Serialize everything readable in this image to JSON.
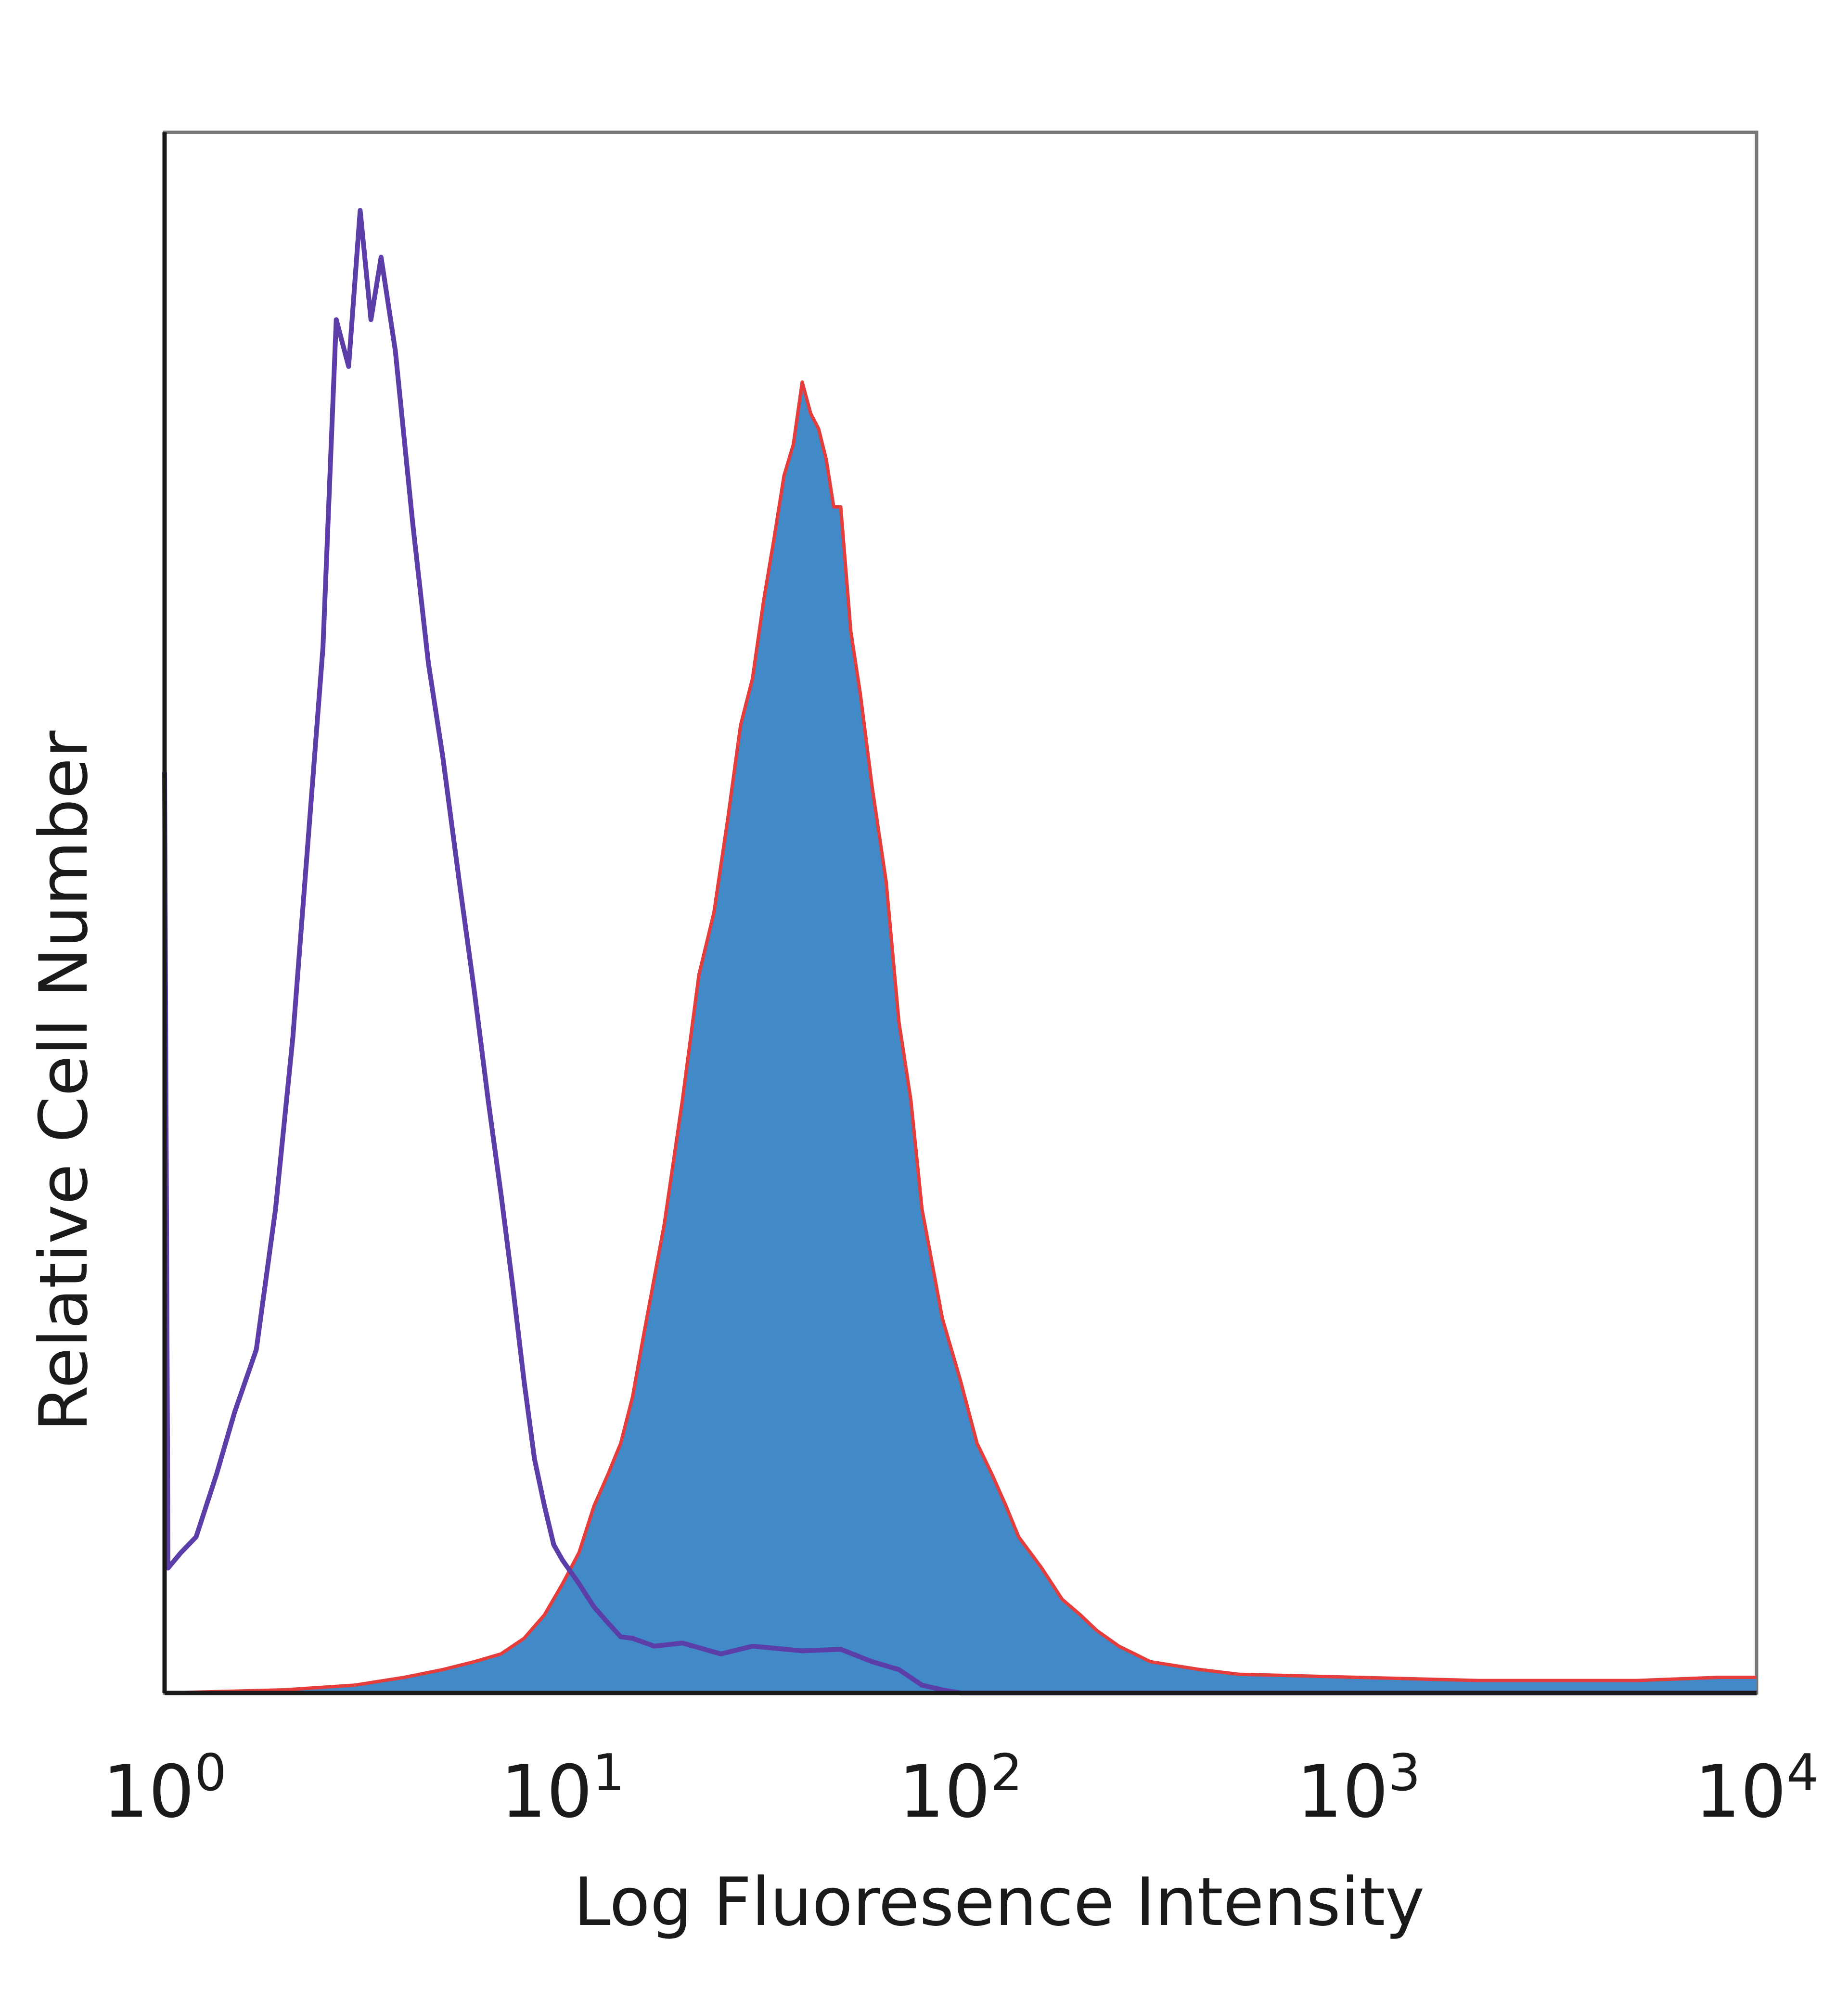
{
  "chart_data": {
    "type": "histogram",
    "title": "",
    "xlabel": "Log Fluoresence Intensity",
    "ylabel": "Relative Cell Number",
    "x_scale": "log",
    "xlim": [
      1,
      10000
    ],
    "ylim": [
      0,
      100
    ],
    "grid": false,
    "legend": "none",
    "x_tick_labels": [
      {
        "value": 1,
        "base": "10",
        "exp": "0"
      },
      {
        "value": 10,
        "base": "10",
        "exp": "1"
      },
      {
        "value": 100,
        "base": "10",
        "exp": "2"
      },
      {
        "value": 1000,
        "base": "10",
        "exp": "3"
      },
      {
        "value": 10000,
        "base": "10",
        "exp": "4"
      }
    ],
    "series": [
      {
        "style": "open-line",
        "color": "#5b3ea8",
        "x": [
          1,
          1.02,
          1.1,
          1.2,
          1.35,
          1.5,
          1.7,
          1.9,
          2.1,
          2.3,
          2.5,
          2.7,
          2.9,
          3.1,
          3.3,
          3.5,
          3.8,
          4.2,
          4.6,
          5.0,
          5.5,
          6.0,
          6.5,
          7.0,
          7.5,
          8.0,
          8.5,
          9.0,
          9.5,
          10,
          11,
          12,
          13,
          14,
          15,
          17,
          20,
          25,
          30,
          40,
          50,
          60,
          70,
          80,
          90,
          100,
          150,
          10000
        ],
        "y": [
          59,
          8,
          9,
          10,
          14,
          18,
          22,
          31,
          42,
          55,
          67,
          88,
          85,
          95,
          88,
          92,
          86,
          75,
          66,
          60,
          52,
          45,
          38,
          32,
          26,
          20,
          15,
          12,
          9.5,
          8.5,
          7,
          5.5,
          4.5,
          3.6,
          3.5,
          3,
          3.2,
          2.5,
          3,
          2.7,
          2.8,
          2,
          1.5,
          0.5,
          0.2,
          0,
          0,
          0
        ]
      },
      {
        "style": "filled",
        "color": "#4189c7",
        "outline_color": "#e53c3c",
        "x": [
          1,
          2,
          3,
          4,
          5,
          6,
          7,
          8,
          9,
          10,
          11,
          12,
          13,
          14,
          15,
          16,
          18,
          20,
          22,
          24,
          26,
          28,
          30,
          32,
          34,
          36,
          38,
          40,
          42,
          44,
          46,
          48,
          50,
          53,
          56,
          60,
          65,
          70,
          75,
          80,
          90,
          100,
          110,
          120,
          130,
          140,
          160,
          180,
          200,
          220,
          250,
          300,
          400,
          500,
          1000,
          2000,
          5000,
          8000,
          10000
        ],
        "y": [
          0,
          0.2,
          0.5,
          1,
          1.5,
          2,
          2.5,
          3.5,
          5,
          7,
          9,
          12,
          14,
          16,
          19,
          23,
          30,
          38,
          46,
          50,
          56,
          62,
          65,
          70,
          74,
          78,
          80,
          84,
          82,
          81,
          79,
          76,
          76,
          68,
          64,
          58,
          52,
          43,
          38,
          31,
          24,
          20,
          16,
          14,
          12,
          10,
          8,
          6,
          5,
          4,
          3,
          2,
          1.5,
          1.2,
          1,
          0.8,
          0.8,
          1,
          1
        ]
      }
    ]
  }
}
